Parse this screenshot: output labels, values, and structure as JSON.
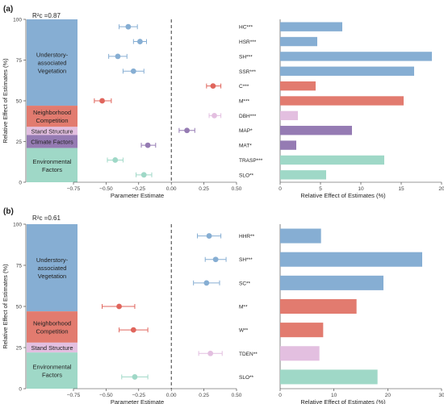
{
  "chart_data": [
    {
      "panel_label": "(a)",
      "r2_label": "R²c =0.87",
      "type": "scatter",
      "left": {
        "ylabel": "Relative Effect of Estimates (%)",
        "ylim": [
          0,
          100
        ],
        "yticks": [
          "0",
          "25",
          "50",
          "75",
          "100"
        ],
        "groups": [
          {
            "name": "Understory-associated Vegetation",
            "lines": [
              "Understory-",
              "associated",
              "Vegetation"
            ],
            "from": 47,
            "to": 100,
            "color": "#86aed3"
          },
          {
            "name": "Neighborhood Competition",
            "lines": [
              "Neighborhood",
              "Competition"
            ],
            "from": 34,
            "to": 47,
            "color": "#e27b6f"
          },
          {
            "name": "Stand Structure",
            "lines": [
              "Stand Structure"
            ],
            "from": 29,
            "to": 34,
            "color": "#e3bfe0"
          },
          {
            "name": "Climate Factors",
            "lines": [
              "Climate Factors"
            ],
            "from": 21,
            "to": 29,
            "color": "#957bb3"
          },
          {
            "name": "Environmental Factors",
            "lines": [
              "Environmental",
              "Factors"
            ],
            "from": 0,
            "to": 21,
            "color": "#9fd8c7"
          }
        ]
      },
      "middle": {
        "xlabel": "Parameter Estimate",
        "xlim": [
          -0.75,
          0.5
        ],
        "xticks": [
          "−0.75",
          "−0.50",
          "−0.25",
          "0.00",
          "0.25",
          "0.50"
        ],
        "points": [
          {
            "label": "HC***",
            "estimate": -0.33,
            "low": -0.4,
            "high": -0.26,
            "color": "#86aed3"
          },
          {
            "label": "HSR***",
            "estimate": -0.24,
            "low": -0.29,
            "high": -0.19,
            "color": "#86aed3"
          },
          {
            "label": "SH***",
            "estimate": -0.41,
            "low": -0.48,
            "high": -0.34,
            "color": "#86aed3"
          },
          {
            "label": "SSR***",
            "estimate": -0.29,
            "low": -0.37,
            "high": -0.21,
            "color": "#86aed3"
          },
          {
            "label": "C***",
            "estimate": 0.32,
            "low": 0.27,
            "high": 0.38,
            "color": "#e0655c"
          },
          {
            "label": "M***",
            "estimate": -0.53,
            "low": -0.59,
            "high": -0.46,
            "color": "#e0655c"
          },
          {
            "label": "DBH***",
            "estimate": 0.33,
            "low": 0.29,
            "high": 0.38,
            "color": "#e3bfe0"
          },
          {
            "label": "MAP*",
            "estimate": 0.12,
            "low": 0.06,
            "high": 0.18,
            "color": "#957bb3"
          },
          {
            "label": "MAT*",
            "estimate": -0.18,
            "low": -0.23,
            "high": -0.12,
            "color": "#957bb3"
          },
          {
            "label": "TRASP***",
            "estimate": -0.43,
            "low": -0.49,
            "high": -0.37,
            "color": "#9fd8c7"
          },
          {
            "label": "SLO**",
            "estimate": -0.21,
            "low": -0.27,
            "high": -0.15,
            "color": "#9fd8c7"
          }
        ]
      },
      "right": {
        "type": "bar",
        "xlabel": "Relative Effect of Estimates (%)",
        "xlim": [
          0,
          20
        ],
        "xticks": [
          "0",
          "5",
          "10",
          "15",
          "20"
        ],
        "bars": [
          {
            "label": "HC***",
            "value": 7.7,
            "color": "#86aed3"
          },
          {
            "label": "HSR***",
            "value": 4.6,
            "color": "#86aed3"
          },
          {
            "label": "SH***",
            "value": 18.8,
            "color": "#86aed3"
          },
          {
            "label": "SSR***",
            "value": 16.6,
            "color": "#86aed3"
          },
          {
            "label": "C***",
            "value": 4.4,
            "color": "#e27b6f"
          },
          {
            "label": "M***",
            "value": 15.3,
            "color": "#e27b6f"
          },
          {
            "label": "DBH***",
            "value": 2.2,
            "color": "#e3bfe0"
          },
          {
            "label": "MAP*",
            "value": 8.9,
            "color": "#957bb3"
          },
          {
            "label": "MAT*",
            "value": 2.0,
            "color": "#957bb3"
          },
          {
            "label": "TRASP***",
            "value": 12.9,
            "color": "#9fd8c7"
          },
          {
            "label": "SLO**",
            "value": 5.7,
            "color": "#9fd8c7"
          }
        ]
      }
    },
    {
      "panel_label": "(b)",
      "r2_label": "R²c =0.61",
      "type": "scatter",
      "left": {
        "ylabel": "Relative Effect of Estimates (%)",
        "ylim": [
          0,
          100
        ],
        "yticks": [
          "0",
          "25",
          "50",
          "75",
          "100"
        ],
        "groups": [
          {
            "name": "Understory-associated Vegetation",
            "lines": [
              "Understory-",
              "associated",
              "Vegetation"
            ],
            "from": 47,
            "to": 100,
            "color": "#86aed3"
          },
          {
            "name": "Neighborhood Competition",
            "lines": [
              "Neighborhood",
              "Competition"
            ],
            "from": 28,
            "to": 47,
            "color": "#e27b6f"
          },
          {
            "name": "Stand Structure",
            "lines": [
              "Stand Structure"
            ],
            "from": 22,
            "to": 28,
            "color": "#e3bfe0"
          },
          {
            "name": "Environmental Factors",
            "lines": [
              "Environmental",
              "Factors"
            ],
            "from": 0,
            "to": 22,
            "color": "#9fd8c7"
          }
        ]
      },
      "middle": {
        "xlabel": "Parameter Estimate",
        "xlim": [
          -0.75,
          0.5
        ],
        "xticks": [
          "−0.75",
          "−0.50",
          "−0.25",
          "0.00",
          "0.25",
          "0.50"
        ],
        "points": [
          {
            "label": "HHR**",
            "estimate": 0.29,
            "low": 0.2,
            "high": 0.38,
            "color": "#86aed3"
          },
          {
            "label": "SH***",
            "estimate": 0.34,
            "low": 0.26,
            "high": 0.42,
            "color": "#86aed3"
          },
          {
            "label": "SC**",
            "estimate": 0.27,
            "low": 0.17,
            "high": 0.37,
            "color": "#86aed3"
          },
          {
            "label": "M**",
            "estimate": -0.4,
            "low": -0.53,
            "high": -0.28,
            "color": "#e0655c"
          },
          {
            "label": "W**",
            "estimate": -0.29,
            "low": -0.4,
            "high": -0.18,
            "color": "#e0655c"
          },
          {
            "label": "TDEN**",
            "estimate": 0.3,
            "low": 0.21,
            "high": 0.39,
            "color": "#e3bfe0"
          },
          {
            "label": "SLO**",
            "estimate": -0.28,
            "low": -0.38,
            "high": -0.18,
            "color": "#9fd8c7"
          }
        ]
      },
      "right": {
        "type": "bar",
        "xlabel": "Relative Effect of Estimates (%)",
        "xlim": [
          0,
          30
        ],
        "xticks": [
          "0",
          "10",
          "20",
          "30"
        ],
        "bars": [
          {
            "label": "HHR**",
            "value": 7.6,
            "color": "#86aed3"
          },
          {
            "label": "SH***",
            "value": 26.4,
            "color": "#86aed3"
          },
          {
            "label": "SC**",
            "value": 19.2,
            "color": "#86aed3"
          },
          {
            "label": "M**",
            "value": 14.2,
            "color": "#e27b6f"
          },
          {
            "label": "W**",
            "value": 8.0,
            "color": "#e27b6f"
          },
          {
            "label": "TDEN**",
            "value": 7.3,
            "color": "#e3bfe0"
          },
          {
            "label": "SLO**",
            "value": 18.1,
            "color": "#9fd8c7"
          }
        ]
      }
    }
  ]
}
